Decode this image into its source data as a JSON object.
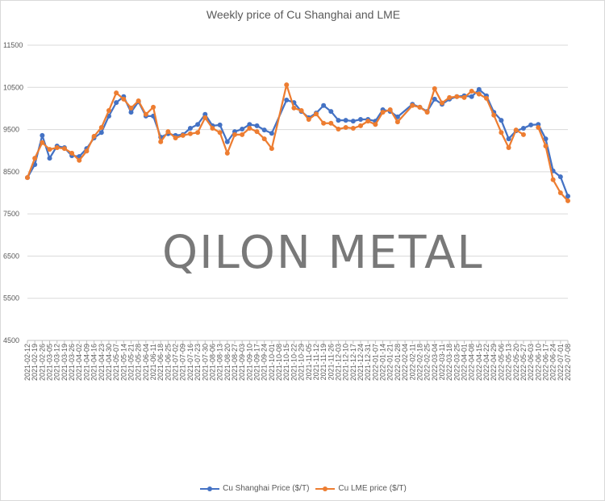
{
  "chart_data": {
    "type": "line",
    "title": "Weekly price of Cu Shanghai and LME",
    "xlabel": "",
    "ylabel": "",
    "ylim": [
      4500,
      11500
    ],
    "yticks": [
      4500,
      5500,
      6500,
      7500,
      8500,
      9500,
      10500,
      11500
    ],
    "grid": true,
    "legend_position": "bottom",
    "categories": [
      "2021-02-12",
      "2021-02-19",
      "2021-02-26",
      "2021-03-05",
      "2021-03-12",
      "2021-03-19",
      "2021-03-26",
      "2021-04-02",
      "2021-04-09",
      "2021-04-16",
      "2021-04-23",
      "2021-04-30",
      "2021-05-07",
      "2021-05-14",
      "2021-05-21",
      "2021-05-28",
      "2021-06-04",
      "2021-06-11",
      "2021-06-18",
      "2021-06-25",
      "2021-07-02",
      "2021-07-09",
      "2021-07-16",
      "2021-07-23",
      "2021-07-30",
      "2021-08-06",
      "2021-08-13",
      "2021-08-20",
      "2021-08-27",
      "2021-09-03",
      "2021-09-10",
      "2021-09-17",
      "2021-09-24",
      "2021-10-01",
      "2021-10-08",
      "2021-10-15",
      "2021-10-22",
      "2021-10-29",
      "2021-11-05",
      "2021-11-12",
      "2021-11-19",
      "2021-11-26",
      "2021-12-03",
      "2021-12-10",
      "2021-12-17",
      "2021-12-24",
      "2021-12-31",
      "2022-01-07",
      "2022-01-14",
      "2022-01-21",
      "2022-01-28",
      "2022-02-04",
      "2022-02-11",
      "2022-02-18",
      "2022-02-25",
      "2022-03-04",
      "2022-03-11",
      "2022-03-18",
      "2022-03-25",
      "2022-04-01",
      "2022-04-08",
      "2022-04-15",
      "2022-04-22",
      "2022-04-29",
      "2022-05-06",
      "2022-05-13",
      "2022-05-20",
      "2022-05-27",
      "2022-06-03",
      "2022-06-10",
      "2022-06-17",
      "2022-06-24",
      "2022-07-01",
      "2022-07-08"
    ],
    "series": [
      {
        "name": "Cu Shanghai Price ($/T)",
        "color": "#4472c4",
        "values": [
          8360,
          8670,
          9360,
          8820,
          9110,
          9070,
          8880,
          8860,
          9050,
          9300,
          9430,
          9820,
          10140,
          10280,
          9910,
          10160,
          9820,
          9820,
          9320,
          9400,
          9360,
          9380,
          9530,
          9620,
          9860,
          9590,
          9610,
          9210,
          9450,
          9510,
          9620,
          9590,
          9490,
          9410,
          null,
          10200,
          10140,
          9930,
          9780,
          9890,
          10070,
          9930,
          9720,
          9720,
          9700,
          9740,
          9740,
          9700,
          9970,
          9930,
          9800,
          null,
          10100,
          10030,
          9930,
          10220,
          10100,
          10220,
          10280,
          10300,
          10280,
          10450,
          10300,
          9910,
          9720,
          9280,
          9470,
          9530,
          9610,
          9620,
          9280,
          8520,
          8380,
          7920
        ]
      },
      {
        "name": "Cu LME price ($/T)",
        "color": "#ed7d31",
        "values": [
          8360,
          8820,
          9190,
          9030,
          9070,
          9050,
          8940,
          8770,
          8990,
          9340,
          9550,
          9950,
          10370,
          10220,
          10010,
          10180,
          9860,
          10030,
          9210,
          9450,
          9300,
          9360,
          9400,
          9430,
          9780,
          9530,
          9430,
          8940,
          9380,
          9380,
          9530,
          9450,
          9280,
          9050,
          null,
          10560,
          10010,
          9950,
          9740,
          9870,
          9650,
          9650,
          9510,
          9550,
          9530,
          9590,
          9700,
          9620,
          9910,
          9970,
          9680,
          null,
          10070,
          10030,
          9910,
          10470,
          10130,
          10260,
          10280,
          10260,
          10410,
          10340,
          10240,
          9840,
          9430,
          9070,
          9490,
          9380,
          null,
          9550,
          9110,
          8310,
          8000,
          7810
        ]
      }
    ]
  },
  "watermark": "QILON METAL"
}
